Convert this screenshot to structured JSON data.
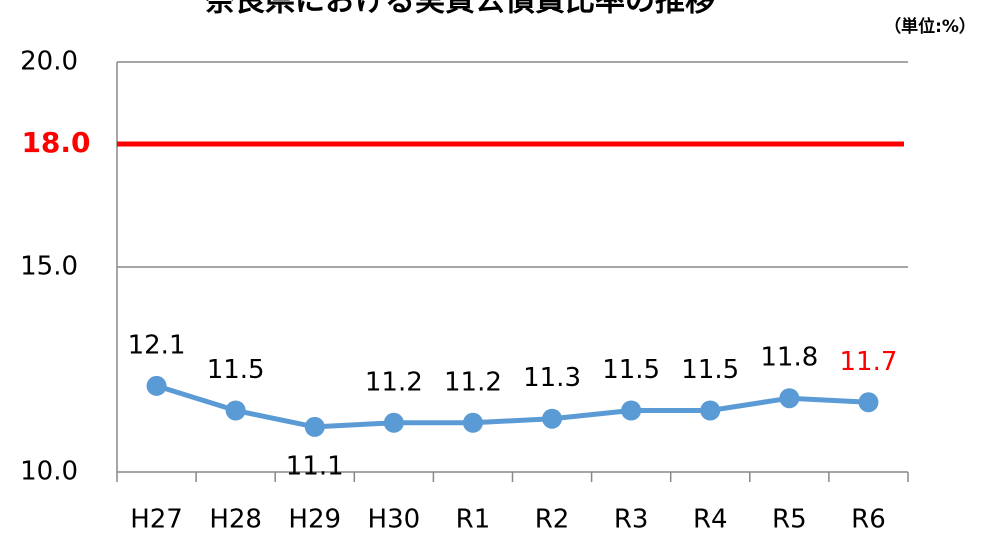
{
  "chart_data": {
    "type": "line",
    "title": "奈良県における実質公債費比率の推移",
    "unit_label": "（単位:%）",
    "categories": [
      "H27",
      "H28",
      "H29",
      "H30",
      "R1",
      "R2",
      "R3",
      "R4",
      "R5",
      "R6"
    ],
    "series": [
      {
        "name": "実質公債費比率",
        "color": "#5b9bd5",
        "values": [
          12.1,
          11.5,
          11.1,
          11.2,
          11.2,
          11.3,
          11.5,
          11.5,
          11.8,
          11.7
        ],
        "value_label_colors": [
          "#000000",
          "#000000",
          "#000000",
          "#000000",
          "#000000",
          "#000000",
          "#000000",
          "#000000",
          "#000000",
          "#ff0000"
        ]
      }
    ],
    "reference_line": {
      "value": 18,
      "label": "18.0",
      "color": "#ff0000"
    },
    "ylim": [
      10,
      20
    ],
    "yticks": [
      {
        "value": 10,
        "label": "10.0"
      },
      {
        "value": 15,
        "label": "15.0"
      },
      {
        "value": 20,
        "label": "20.0"
      }
    ],
    "grid": true
  }
}
